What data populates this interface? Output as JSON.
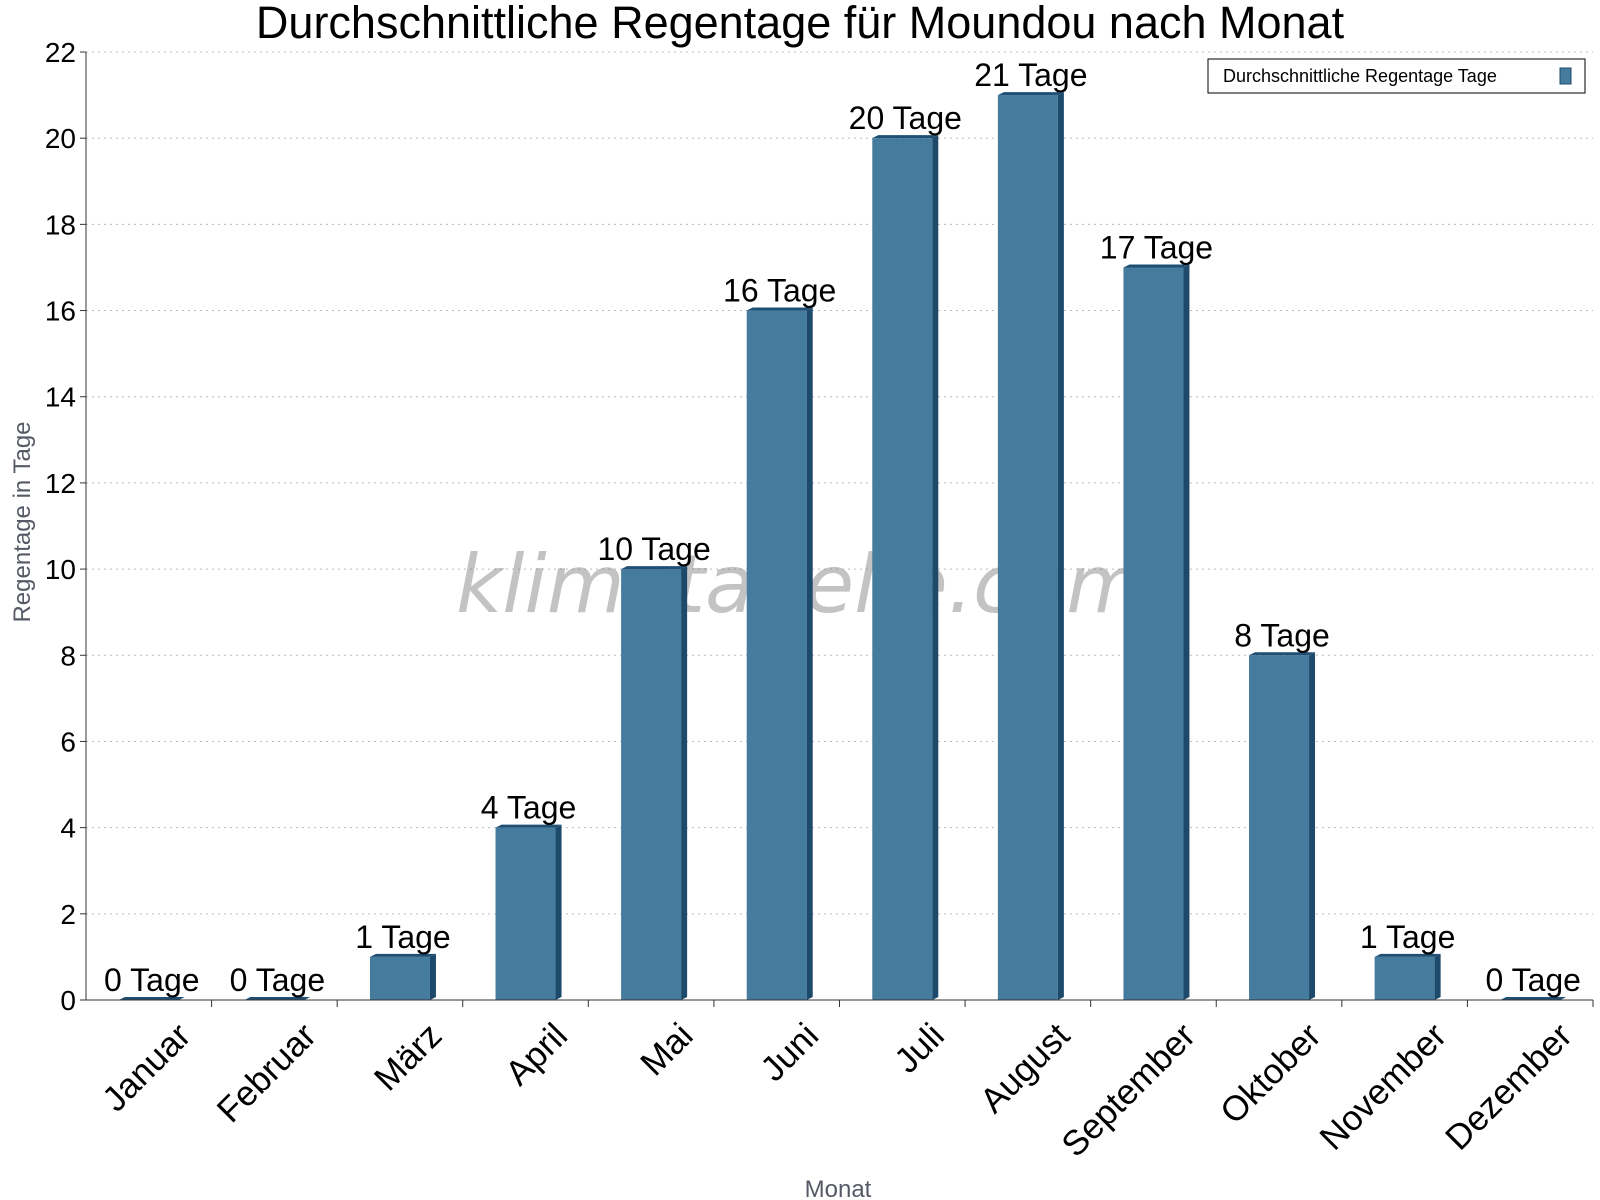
{
  "chart_data": {
    "type": "bar",
    "title": "Durchschnittliche Regentage für Moundou nach Monat",
    "xlabel": "Monat",
    "ylabel": "Regentage in Tage",
    "ylim": [
      0,
      22
    ],
    "yticks": [
      0,
      2,
      4,
      6,
      8,
      10,
      12,
      14,
      16,
      18,
      20,
      22
    ],
    "grid": true,
    "legend_position": "top-right",
    "categories": [
      "Januar",
      "Februar",
      "März",
      "April",
      "Mai",
      "Juni",
      "Juli",
      "August",
      "September",
      "Oktober",
      "November",
      "Dezember"
    ],
    "series": [
      {
        "name": "Durchschnittliche Regentage Tage",
        "color": "#457b9d",
        "values": [
          0,
          0,
          1,
          4,
          10,
          16,
          20,
          21,
          17,
          8,
          1,
          0
        ],
        "data_labels": [
          "0 Tage",
          "0 Tage",
          "1 Tage",
          "4 Tage",
          "10 Tage",
          "16 Tage",
          "20 Tage",
          "21 Tage",
          "17 Tage",
          "8 Tage",
          "1 Tage",
          "0 Tage"
        ]
      }
    ]
  },
  "watermark": "klimatabelle.com",
  "colors": {
    "bar_face": "#457b9d",
    "bar_side": "#1d4a6b",
    "bar_top": "#1f4f73",
    "grid": "#bbbbbb",
    "axis": "#333333"
  }
}
